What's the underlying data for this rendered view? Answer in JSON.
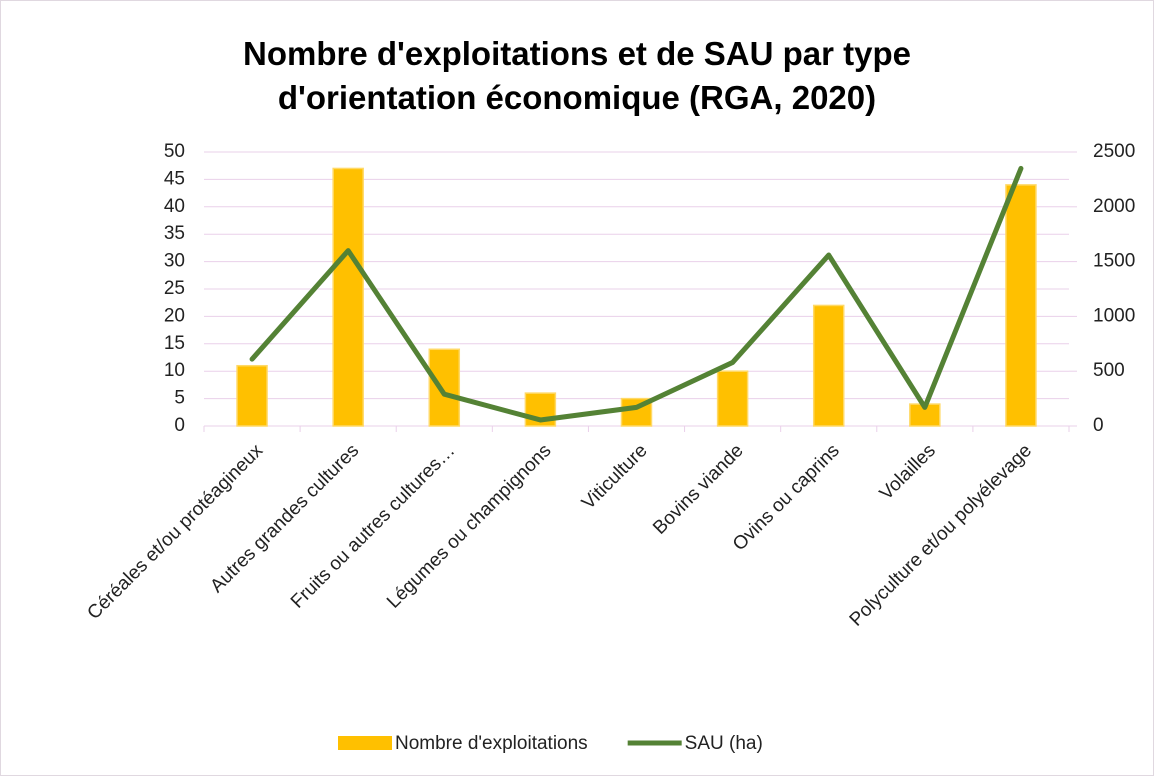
{
  "chart_data": {
    "type": "bar",
    "title": "Nombre d'exploitations et de SAU par type d'orientation économique (RGA, 2020)",
    "categories": [
      "Céréales et/ou protéagineux",
      "Autres grandes cultures",
      "Fruits ou autres cultures…",
      "Légumes ou champignons",
      "Viticulture",
      "Bovins viande",
      "Ovins ou caprins",
      "Volailles",
      "Polyculture et/ou polyélevage"
    ],
    "series": [
      {
        "name": "Nombre d'exploitations",
        "type": "bar",
        "color": "#ffc000",
        "values": [
          11,
          47,
          14,
          6,
          5,
          10,
          22,
          4,
          44
        ]
      },
      {
        "name": "SAU (ha)",
        "type": "line",
        "axis": "y2",
        "color": "#548235",
        "values": [
          610,
          1600,
          290,
          55,
          170,
          580,
          1560,
          170,
          2350
        ]
      }
    ],
    "ylim": [
      0,
      50
    ],
    "yticks": [
      0,
      5,
      10,
      15,
      20,
      25,
      30,
      35,
      40,
      45,
      50
    ],
    "y2lim": [
      0,
      2500
    ],
    "y2ticks": [
      0,
      500,
      1000,
      1500,
      2000,
      2500
    ],
    "grid": true,
    "legend": "bottom"
  }
}
